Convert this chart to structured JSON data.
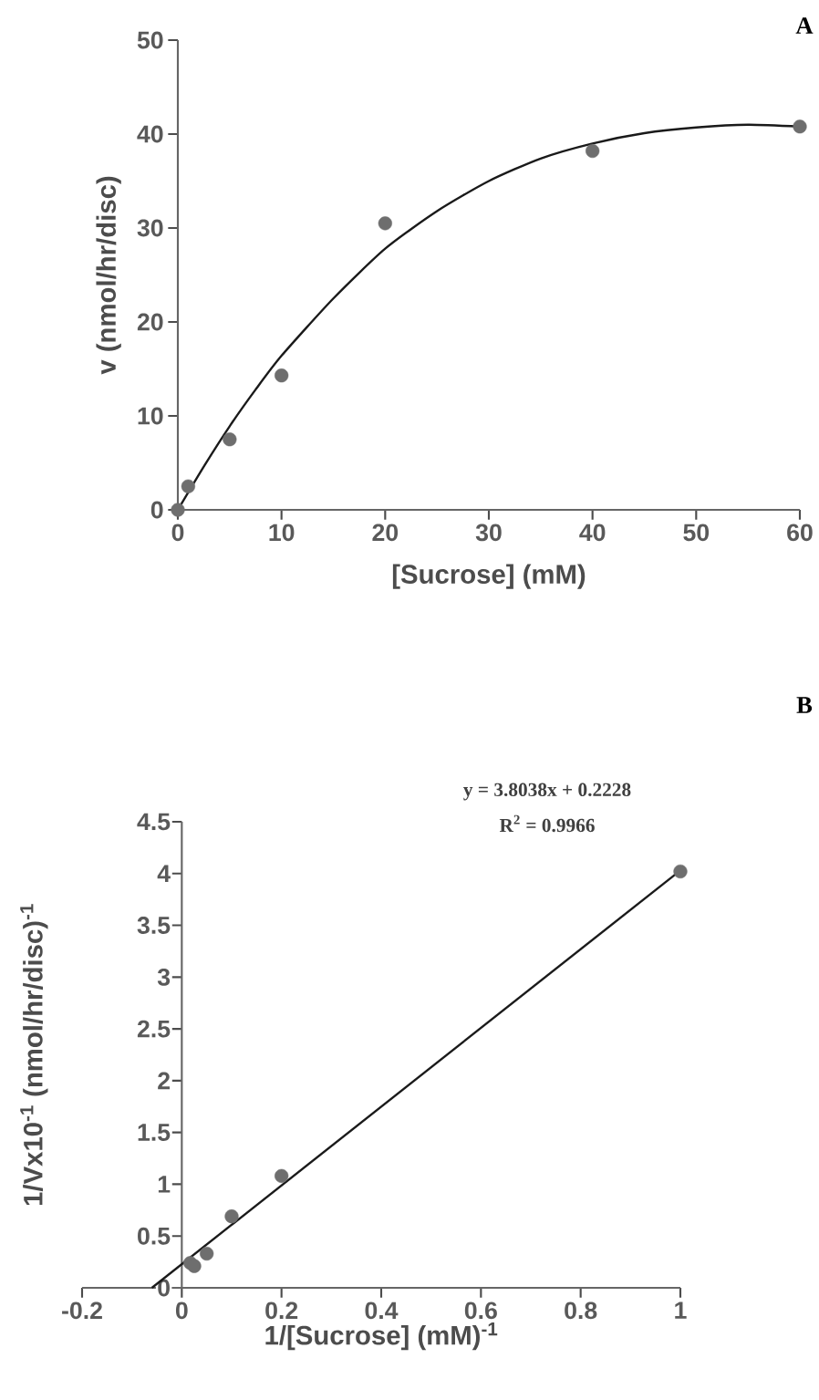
{
  "chart_data": [
    {
      "type": "scatter",
      "xlabel": "[Sucrose] (mM)",
      "ylabel": "v (nmol/hr/disc)",
      "annotations": [
        "A"
      ],
      "marker": "circle",
      "xlim": [
        0,
        60
      ],
      "ylim": [
        0,
        50
      ],
      "xticks": [
        0,
        10,
        20,
        30,
        40,
        50,
        60
      ],
      "yticks": [
        0,
        10,
        20,
        30,
        40,
        50
      ],
      "series": [
        {
          "color": "#6e6e6e",
          "x": [
            0,
            1,
            5,
            10,
            20,
            40,
            60
          ],
          "values": [
            0,
            2.5,
            7.5,
            14.3,
            30.5,
            38.2,
            40.8
          ]
        },
        {
          "type": "line",
          "marker": "none",
          "color": "#1a1a1a",
          "x": [
            0,
            2.5,
            5,
            7.5,
            10,
            15,
            20,
            25,
            30,
            35,
            40,
            45,
            50,
            55,
            60
          ],
          "values": [
            0,
            4.6,
            8.9,
            12.8,
            16.4,
            22.5,
            27.8,
            31.8,
            35,
            37.4,
            39,
            40.1,
            40.7,
            41,
            40.8
          ]
        }
      ]
    },
    {
      "type": "scatter",
      "xlabel": "1/[Sucrose] (mM)$^{-1}$",
      "ylabel": "1/Vx10$^{-1}$ (nmol/hr/disc)$^{-1}$",
      "annotations": [
        "B",
        "y = 3.8038x + 0.2228",
        "R$^{2}$ = 0.9966"
      ],
      "marker": "circle",
      "xlim": [
        -0.2,
        1
      ],
      "ylim": [
        0,
        4.5
      ],
      "xticks": [
        -0.2,
        0,
        0.2,
        0.4,
        0.6,
        0.8,
        1
      ],
      "yticks": [
        0,
        0.5,
        1,
        1.5,
        2,
        2.5,
        3,
        3.5,
        4,
        4.5
      ],
      "series": [
        {
          "color": "#6e6e6e",
          "x": [
            0.017,
            0.025,
            0.05,
            0.1,
            0.2,
            1
          ],
          "values": [
            0.24,
            0.21,
            0.33,
            0.69,
            1.08,
            4.02
          ]
        },
        {
          "type": "line",
          "marker": "none",
          "color": "#1a1a1a",
          "x": [
            -0.06,
            1
          ],
          "values": [
            0,
            4.03
          ]
        }
      ]
    }
  ]
}
